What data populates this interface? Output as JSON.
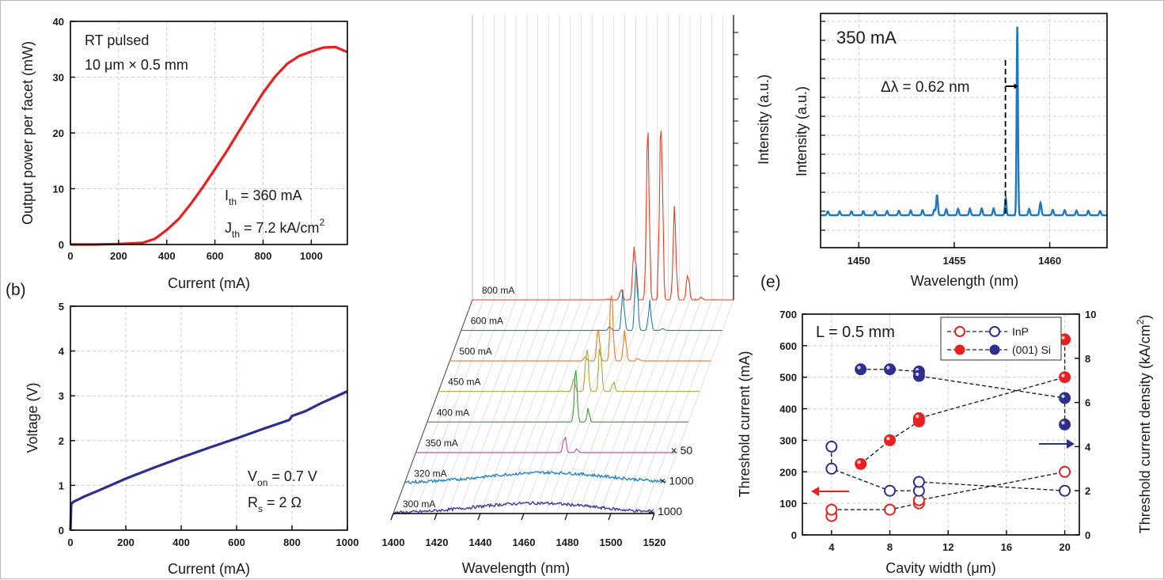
{
  "chart_data": [
    {
      "id": "a",
      "type": "line",
      "xlabel": "Current (mA)",
      "ylabel": "Output power per facet (mW)",
      "xlim": [
        0,
        1150
      ],
      "ylim": [
        0,
        40
      ],
      "xticks": [
        "0",
        "200",
        "400",
        "600",
        "800",
        "1000"
      ],
      "yticks": [
        "0",
        "10",
        "20",
        "30",
        "40"
      ],
      "grid": true,
      "annotations": [
        "RT pulsed",
        "10 μm × 0.5 mm",
        "I",
        "th",
        " = 360 mA",
        "J",
        "th",
        " = 7.2 kA/cm",
        "2"
      ],
      "series": [
        {
          "color": "#e82020",
          "points": [
            [
              0,
              0
            ],
            [
              100,
              0
            ],
            [
              200,
              0.1
            ],
            [
              300,
              0.3
            ],
            [
              350,
              1
            ],
            [
              400,
              2.6
            ],
            [
              450,
              4.6
            ],
            [
              500,
              7.3
            ],
            [
              550,
              10.3
            ],
            [
              600,
              13.5
            ],
            [
              650,
              16.8
            ],
            [
              700,
              20.3
            ],
            [
              750,
              23.8
            ],
            [
              800,
              27.2
            ],
            [
              850,
              30.1
            ],
            [
              900,
              32.4
            ],
            [
              950,
              33.8
            ],
            [
              1000,
              34.6
            ],
            [
              1050,
              35.3
            ],
            [
              1100,
              35.4
            ],
            [
              1150,
              34.5
            ]
          ]
        }
      ]
    },
    {
      "id": "b",
      "panel_label": "(b)",
      "type": "line",
      "xlabel": "Current (mA)",
      "ylabel": "Voltage (V)",
      "xlim": [
        0,
        1000
      ],
      "ylim": [
        0,
        5
      ],
      "xticks": [
        "0",
        "200",
        "400",
        "600",
        "800",
        "1000"
      ],
      "yticks": [
        "0",
        "1",
        "2",
        "3",
        "4",
        "5"
      ],
      "grid": true,
      "annotations": [
        "V",
        "on",
        " = 0.7 V",
        "R",
        "s",
        " = 2 Ω"
      ],
      "series": [
        {
          "color": "#2e2e8f",
          "points": [
            [
              0,
              0
            ],
            [
              3,
              0.58
            ],
            [
              10,
              0.63
            ],
            [
              50,
              0.75
            ],
            [
              100,
              0.88
            ],
            [
              200,
              1.15
            ],
            [
              300,
              1.39
            ],
            [
              400,
              1.62
            ],
            [
              500,
              1.84
            ],
            [
              600,
              2.05
            ],
            [
              700,
              2.27
            ],
            [
              790,
              2.46
            ],
            [
              800,
              2.55
            ],
            [
              850,
              2.66
            ],
            [
              900,
              2.82
            ],
            [
              950,
              2.96
            ],
            [
              1000,
              3.1
            ]
          ]
        }
      ]
    },
    {
      "id": "c",
      "type": "line",
      "xlabel": "Wavelength (nm)",
      "ylabel": "Intensity (a.u.)",
      "xlim": [
        1400,
        1520
      ],
      "xticks": [
        "1400",
        "1420",
        "1440",
        "1460",
        "1480",
        "1500",
        "1520"
      ],
      "series": [
        {
          "name": "300 mA",
          "color": "#3a3aa0",
          "multiplier": "× 1000"
        },
        {
          "name": "320 mA",
          "color": "#1f86c8",
          "multiplier": "× 1000"
        },
        {
          "name": "350 mA",
          "color": "#c040b0",
          "multiplier": "× 50"
        },
        {
          "name": "400 mA",
          "color": "#3c9a3c"
        },
        {
          "name": "450 mA",
          "color": "#a8a838"
        },
        {
          "name": "500 mA",
          "color": "#f07a20"
        },
        {
          "name": "600 mA",
          "color": "#2a7fa8"
        },
        {
          "name": "800 mA",
          "color": "#ee3a20"
        }
      ],
      "peaks": [
        {
          "name": "350 mA",
          "center": 1470,
          "height": 0.3
        },
        {
          "name": "400 mA",
          "center": 1470,
          "height": 1.0
        },
        {
          "name": "450 mA",
          "center": 1471,
          "height": 0.75
        },
        {
          "name": "500 mA",
          "center": 1474,
          "height": 0.9
        },
        {
          "name": "600 mA",
          "center": 1480,
          "height": 0.85
        },
        {
          "name": "800 mA",
          "center": 1485,
          "height": 2.3
        }
      ]
    },
    {
      "id": "d",
      "type": "line",
      "xlabel": "Wavelength (nm)",
      "ylabel": "Intensity (a.u.)",
      "xlim": [
        1448,
        1463
      ],
      "xticks": [
        "1450",
        "1455",
        "1460"
      ],
      "grid": true,
      "title": "350 mA",
      "annotations": [
        "Δλ = 0.62 nm"
      ],
      "series": [
        {
          "name": "350 mA",
          "color": "#1f78c0"
        }
      ],
      "main_peak": 1458.3,
      "side_peak": 1454.1,
      "mode_spacing": 0.62
    },
    {
      "id": "e",
      "panel_label": "(e)",
      "type": "scatter",
      "xlabel": "Cavity width (μm)",
      "ylabel": "Threshold current (mA)",
      "y2label": "Threshold current density (kA/cm",
      "y2label_sup": "2",
      "y2label_end": ")",
      "xlim": [
        2,
        21
      ],
      "ylim": [
        0,
        700
      ],
      "y2lim": [
        0,
        10
      ],
      "xticks": [
        "4",
        "8",
        "12",
        "16",
        "20"
      ],
      "yticks": [
        "0",
        "100",
        "200",
        "300",
        "400",
        "500",
        "600",
        "700"
      ],
      "y2ticks": [
        "0",
        "2",
        "4",
        "6",
        "8",
        "10"
      ],
      "grid": true,
      "annotations": [
        "L = 0.5 mm"
      ],
      "legend": [
        "InP",
        "(001) Si"
      ],
      "legend_position": "top",
      "series": [
        {
          "name": "InP",
          "axis": "left",
          "color": "#e82020",
          "filled": false,
          "points": [
            [
              4,
              60
            ],
            [
              4,
              80
            ],
            [
              8,
              80
            ],
            [
              10,
              100
            ],
            [
              10,
              110
            ],
            [
              20,
              200
            ]
          ]
        },
        {
          "name": "InP",
          "axis": "right",
          "color": "#2e2e8f",
          "filled": false,
          "points": [
            [
              4,
              4.0
            ],
            [
              4,
              3.0
            ],
            [
              8,
              2.0
            ],
            [
              10,
              2.0
            ],
            [
              10,
              2.4
            ],
            [
              20,
              2.0
            ]
          ]
        },
        {
          "name": "(001) Si",
          "axis": "left",
          "color": "#e82020",
          "filled": true,
          "points": [
            [
              6,
              225
            ],
            [
              8,
              300
            ],
            [
              10,
              360
            ],
            [
              10,
              370
            ],
            [
              20,
              500
            ],
            [
              20,
              620
            ]
          ]
        },
        {
          "name": "(001) Si",
          "axis": "right",
          "color": "#2e2e8f",
          "filled": true,
          "points": [
            [
              6,
              7.5
            ],
            [
              8,
              7.5
            ],
            [
              10,
              7.4
            ],
            [
              10,
              7.2
            ],
            [
              20,
              6.2
            ],
            [
              20,
              5.0
            ]
          ]
        }
      ]
    }
  ]
}
